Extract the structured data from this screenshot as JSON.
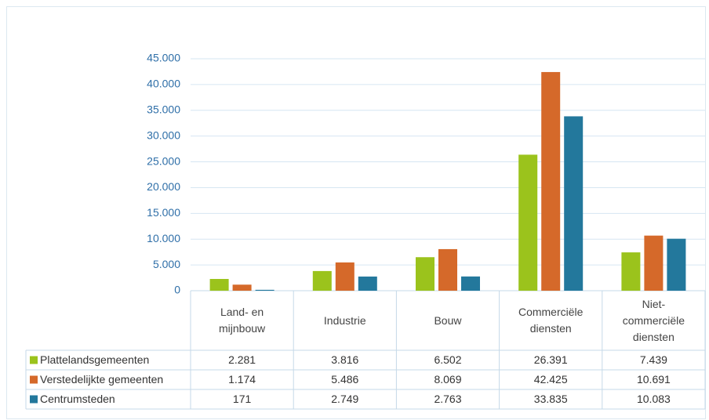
{
  "chart_data": {
    "type": "bar",
    "categories": [
      "Land- en mijnbouw",
      "Industrie",
      "Bouw",
      "Commerciële diensten",
      "Niet-commerciële diensten"
    ],
    "series": [
      {
        "name": "Plattelandsgemeenten",
        "color": "#9bc31c",
        "values": [
          2281,
          3816,
          6502,
          26391,
          7439
        ],
        "value_labels": [
          "2.281",
          "3.816",
          "6.502",
          "26.391",
          "7.439"
        ]
      },
      {
        "name": "Verstedelijkte gemeenten",
        "color": "#d5692a",
        "values": [
          1174,
          5486,
          8069,
          42425,
          10691
        ],
        "value_labels": [
          "1.174",
          "5.486",
          "8.069",
          "42.425",
          "10.691"
        ]
      },
      {
        "name": "Centrumsteden",
        "color": "#23789c",
        "values": [
          171,
          2749,
          2763,
          33835,
          10083
        ],
        "value_labels": [
          "171",
          "2.749",
          "2.763",
          "33.835",
          "10.083"
        ]
      }
    ],
    "ylim": [
      0,
      45000
    ],
    "yticks": [
      0,
      {
        "value": 5000,
        "label": "5.000"
      },
      {
        "value": 10000,
        "label": "10.000"
      },
      {
        "value": 15000,
        "label": "15.000"
      },
      {
        "value": 20000,
        "label": "20.000"
      },
      {
        "value": 25000,
        "label": "25.000"
      },
      {
        "value": 30000,
        "label": "30.000"
      },
      {
        "value": 35000,
        "label": "35.000"
      },
      {
        "value": 40000,
        "label": "40.000"
      },
      {
        "value": 45000,
        "label": "45.000"
      }
    ],
    "grid": true
  }
}
